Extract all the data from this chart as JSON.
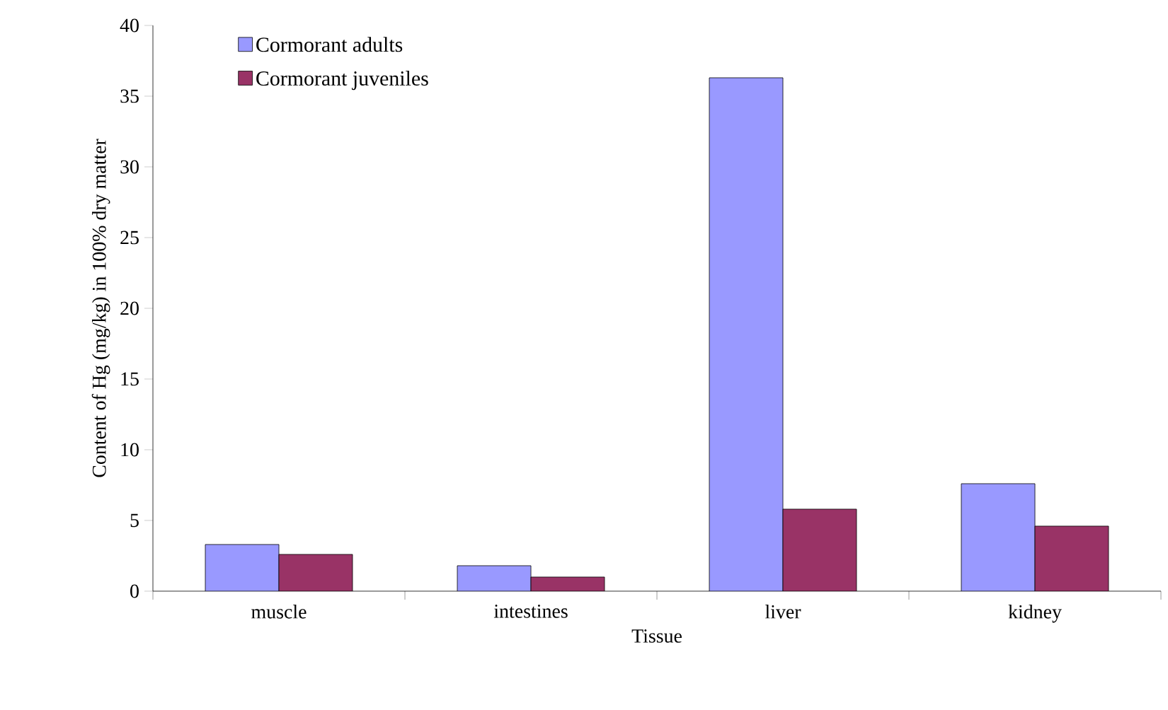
{
  "chart_data": {
    "type": "bar",
    "xlabel": "Tissue",
    "ylabel": "Content of Hg (mg/kg) in 100% dry matter",
    "categories": [
      "muscle",
      "intestines",
      "liver",
      "kidney"
    ],
    "series": [
      {
        "name": "Cormorant adults",
        "color": "#9999ff",
        "values": [
          3.3,
          1.8,
          36.3,
          7.6
        ]
      },
      {
        "name": "Cormorant juveniles",
        "color": "#993366",
        "values": [
          2.6,
          1.0,
          5.8,
          4.6
        ]
      }
    ],
    "ylim": [
      0,
      40
    ],
    "yticks": [
      0,
      5,
      10,
      15,
      20,
      25,
      30,
      35,
      40
    ],
    "grid": false,
    "legend": "top left"
  }
}
